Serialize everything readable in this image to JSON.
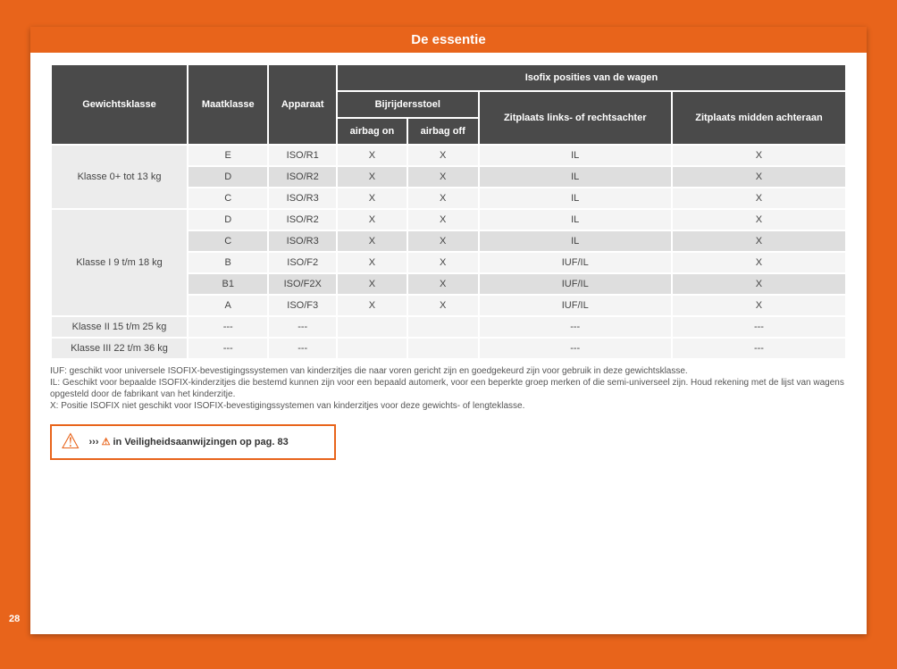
{
  "page_title": "De essentie",
  "page_number": "28",
  "headers": {
    "col1": "Gewichtsklasse",
    "col2": "Maatklasse",
    "col3": "Apparaat",
    "group": "Isofix posities van de wagen",
    "sub_passenger": "Bijrijdersstoel",
    "sub_airbag_on": "airbag on",
    "sub_airbag_off": "airbag off",
    "sub_rear_side": "Zitplaats links- of rechtsachter",
    "sub_rear_mid": "Zitplaats midden achteraan"
  },
  "groups": [
    {
      "label": "Klasse 0+ tot 13 kg",
      "shade": "light",
      "rows": [
        {
          "size": "E",
          "device": "ISO/R1",
          "on": "X",
          "off": "X",
          "rear_side": "IL",
          "rear_mid": "X"
        },
        {
          "size": "D",
          "device": "ISO/R2",
          "on": "X",
          "off": "X",
          "rear_side": "IL",
          "rear_mid": "X"
        },
        {
          "size": "C",
          "device": "ISO/R3",
          "on": "X",
          "off": "X",
          "rear_side": "IL",
          "rear_mid": "X"
        }
      ]
    },
    {
      "label": "Klasse I 9 t/m 18 kg",
      "shade": "light",
      "rows": [
        {
          "size": "D",
          "device": "ISO/R2",
          "on": "X",
          "off": "X",
          "rear_side": "IL",
          "rear_mid": "X"
        },
        {
          "size": "C",
          "device": "ISO/R3",
          "on": "X",
          "off": "X",
          "rear_side": "IL",
          "rear_mid": "X"
        },
        {
          "size": "B",
          "device": "ISO/F2",
          "on": "X",
          "off": "X",
          "rear_side": "IUF/IL",
          "rear_mid": "X"
        },
        {
          "size": "B1",
          "device": "ISO/F2X",
          "on": "X",
          "off": "X",
          "rear_side": "IUF/IL",
          "rear_mid": "X"
        },
        {
          "size": "A",
          "device": "ISO/F3",
          "on": "X",
          "off": "X",
          "rear_side": "IUF/IL",
          "rear_mid": "X"
        }
      ]
    },
    {
      "label": "Klasse II 15 t/m 25 kg",
      "shade": "light",
      "rows": [
        {
          "size": "---",
          "device": "---",
          "on": "",
          "off": "",
          "rear_side": "---",
          "rear_mid": "---"
        }
      ]
    },
    {
      "label": "Klasse III 22 t/m 36 kg",
      "shade": "dark",
      "rows": [
        {
          "size": "---",
          "device": "---",
          "on": "",
          "off": "",
          "rear_side": "---",
          "rear_mid": "---"
        }
      ]
    }
  ],
  "footnotes": {
    "iuf": "IUF: geschikt voor universele ISOFIX-bevestigingssystemen van kinderzitjes die naar voren gericht zijn en goedgekeurd zijn voor gebruik in deze gewichtsklasse.",
    "il": "IL: Geschikt voor bepaalde ISOFIX-kinderzitjes die bestemd kunnen zijn voor een bepaald automerk, voor een beperkte groep merken of die semi-universeel zijn. Houd rekening met de lijst van wagens opgesteld door de fabrikant van het kinderzitje.",
    "x": "X: Positie ISOFIX niet geschikt voor ISOFIX-bevestigingssystemen van kinderzitjes voor deze gewichts- of lengteklasse."
  },
  "warning": {
    "prefix": "››› ",
    "text": " in Veiligheidsaanwijzingen op pag. 83"
  }
}
